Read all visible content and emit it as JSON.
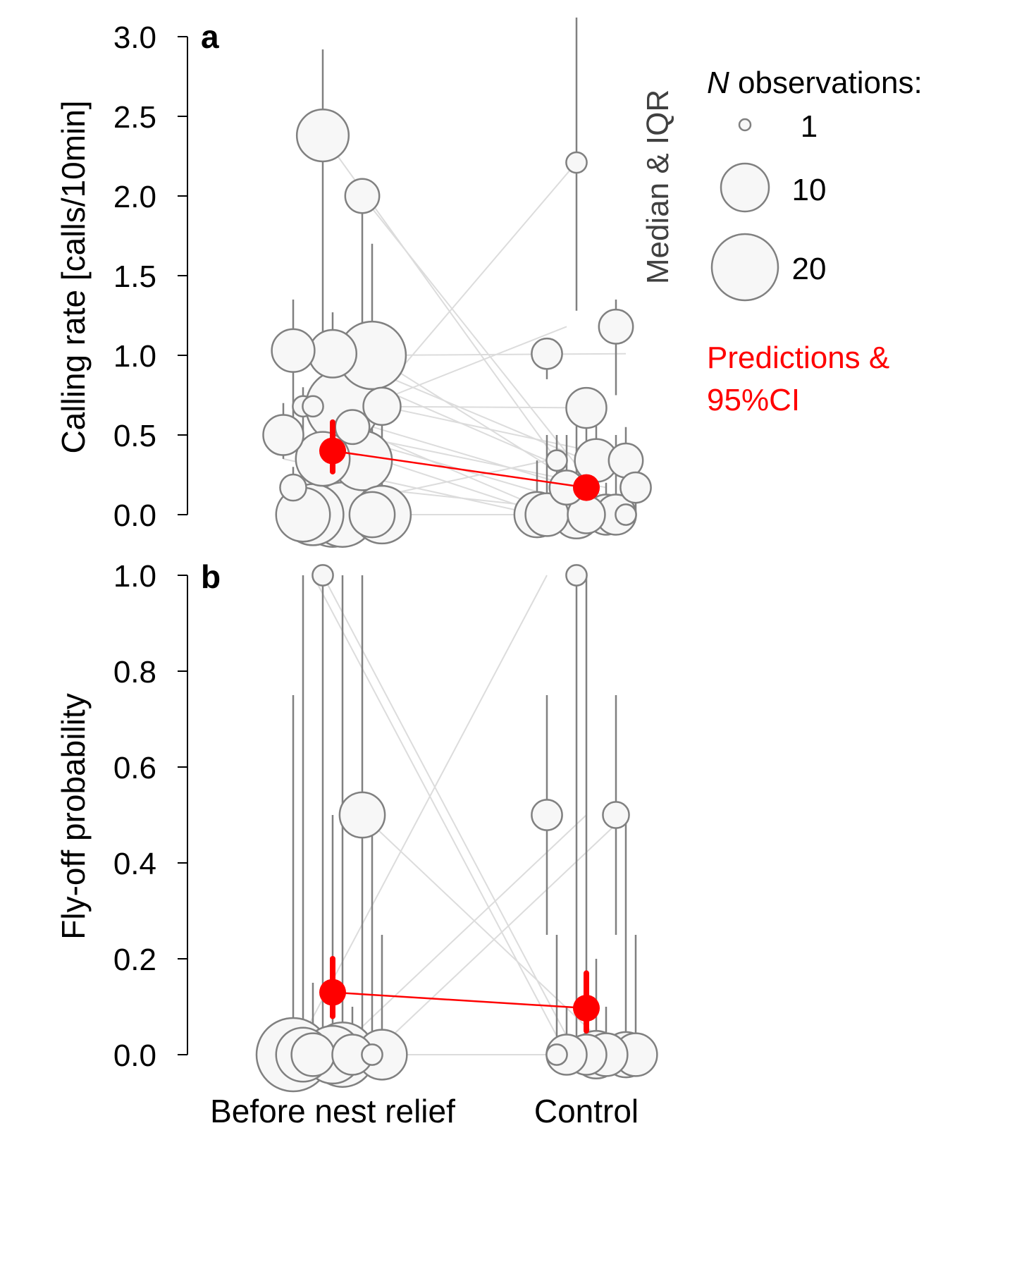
{
  "x_categories": [
    "Before nest relief",
    "Control"
  ],
  "legend": {
    "size_title_italic": "N",
    "size_title_rest": " observations:",
    "sizes": [
      {
        "label": "1",
        "n": 1
      },
      {
        "label": "10",
        "n": 10
      },
      {
        "label": "20",
        "n": 20
      }
    ],
    "median_label": "Median & IQR",
    "prediction_label_line1": "Predictions &",
    "prediction_label_line2": "95%CI",
    "prediction_color": "#ff0000",
    "observation_color": "#808080",
    "pairing_line_color": "#dcdcdc"
  },
  "chart_data": [
    {
      "type": "scatter",
      "panel_label": "a",
      "ylabel": "Calling rate [calls/10min]",
      "ylim": [
        0,
        3.0
      ],
      "yticks": [
        "0.0",
        "0.5",
        "1.0",
        "1.5",
        "2.0",
        "2.5",
        "3.0"
      ],
      "categories": [
        "Before nest relief",
        "Control"
      ],
      "observations": [
        {
          "x": "Before nest relief",
          "median": 2.38,
          "q1": 0.35,
          "q3": 2.92,
          "n": 11
        },
        {
          "x": "Before nest relief",
          "median": 2.0,
          "q1": 0.8,
          "q3": 2.1,
          "n": 4
        },
        {
          "x": "Before nest relief",
          "median": 1.03,
          "q1": 0.55,
          "q3": 1.35,
          "n": 7
        },
        {
          "x": "Before nest relief",
          "median": 1.01,
          "q1": 0.5,
          "q3": 1.27,
          "n": 9
        },
        {
          "x": "Before nest relief",
          "median": 1.0,
          "q1": 0.3,
          "q3": 1.7,
          "n": 20
        },
        {
          "x": "Before nest relief",
          "median": 0.68,
          "q1": 0.5,
          "q3": 0.8,
          "n": 1
        },
        {
          "x": "Before nest relief",
          "median": 0.68,
          "q1": 0.2,
          "q3": 1.0,
          "n": 24
        },
        {
          "x": "Before nest relief",
          "median": 0.68,
          "q1": 0.3,
          "q3": 0.85,
          "n": 5
        },
        {
          "x": "Before nest relief",
          "median": 0.68,
          "q1": 0.55,
          "q3": 0.8,
          "n": 1
        },
        {
          "x": "Before nest relief",
          "median": 0.55,
          "q1": 0.35,
          "q3": 0.75,
          "n": 4
        },
        {
          "x": "Before nest relief",
          "median": 0.5,
          "q1": 0.35,
          "q3": 0.7,
          "n": 6
        },
        {
          "x": "Before nest relief",
          "median": 0.35,
          "q1": 0.1,
          "q3": 0.55,
          "n": 12
        },
        {
          "x": "Before nest relief",
          "median": 0.34,
          "q1": 0.0,
          "q3": 0.6,
          "n": 15
        },
        {
          "x": "Before nest relief",
          "median": 0.17,
          "q1": 0.0,
          "q3": 0.3,
          "n": 2
        },
        {
          "x": "Before nest relief",
          "median": 0.0,
          "q1": 0.0,
          "q3": 0.25,
          "n": 18
        },
        {
          "x": "Before nest relief",
          "median": 0.0,
          "q1": 0.0,
          "q3": 0.1,
          "n": 8
        },
        {
          "x": "Before nest relief",
          "median": 0.0,
          "q1": 0.0,
          "q3": 0.15,
          "n": 12
        },
        {
          "x": "Before nest relief",
          "median": 0.0,
          "q1": 0.0,
          "q3": 0.3,
          "n": 18
        },
        {
          "x": "Before nest relief",
          "median": 0.0,
          "q1": 0.0,
          "q3": 0.2,
          "n": 14
        },
        {
          "x": "Before nest relief",
          "median": 0.0,
          "q1": 0.0,
          "q3": 0.15,
          "n": 16
        },
        {
          "x": "Control",
          "median": 2.21,
          "q1": 1.28,
          "q3": 3.12,
          "n": 1
        },
        {
          "x": "Control",
          "median": 1.18,
          "q1": 0.75,
          "q3": 1.35,
          "n": 4
        },
        {
          "x": "Control",
          "median": 1.01,
          "q1": 0.85,
          "q3": 1.1,
          "n": 3
        },
        {
          "x": "Control",
          "median": 0.67,
          "q1": 0.3,
          "q3": 0.7,
          "n": 6
        },
        {
          "x": "Control",
          "median": 0.34,
          "q1": 0.0,
          "q3": 0.55,
          "n": 4
        },
        {
          "x": "Control",
          "median": 0.34,
          "q1": 0.0,
          "q3": 0.5,
          "n": 1
        },
        {
          "x": "Control",
          "median": 0.34,
          "q1": 0.0,
          "q3": 0.67,
          "n": 7
        },
        {
          "x": "Control",
          "median": 0.17,
          "q1": 0.0,
          "q3": 0.34,
          "n": 3
        },
        {
          "x": "Control",
          "median": 0.17,
          "q1": 0.0,
          "q3": 0.5,
          "n": 4
        },
        {
          "x": "Control",
          "median": 0.0,
          "q1": 0.0,
          "q3": 0.2,
          "n": 6
        },
        {
          "x": "Control",
          "median": 0.0,
          "q1": 0.0,
          "q3": 0.34,
          "n": 8
        },
        {
          "x": "Control",
          "median": 0.0,
          "q1": 0.0,
          "q3": 0.6,
          "n": 9
        },
        {
          "x": "Control",
          "median": 0.0,
          "q1": 0.0,
          "q3": 0.5,
          "n": 6
        },
        {
          "x": "Control",
          "median": 0.0,
          "q1": 0.0,
          "q3": 0.5,
          "n": 7
        },
        {
          "x": "Control",
          "median": 0.0,
          "q1": 0.0,
          "q3": 0.3,
          "n": 5
        },
        {
          "x": "Control",
          "median": 0.0,
          "q1": 0.0,
          "q3": 0.1,
          "n": 1
        }
      ],
      "pairs": [
        [
          2.38,
          0.17
        ],
        [
          2.0,
          0.0
        ],
        [
          1.03,
          0.34
        ],
        [
          1.01,
          0.34
        ],
        [
          1.0,
          1.01
        ],
        [
          0.68,
          0.0
        ],
        [
          0.68,
          0.67
        ],
        [
          0.68,
          0.34
        ],
        [
          0.55,
          1.18
        ],
        [
          0.5,
          0.17
        ],
        [
          0.35,
          0.0
        ],
        [
          0.34,
          2.21
        ],
        [
          0.17,
          0.0
        ],
        [
          0.0,
          0.34
        ],
        [
          0.0,
          0.0
        ],
        [
          1.0,
          0.0
        ],
        [
          0.68,
          0.17
        ],
        [
          0.5,
          0.0
        ],
        [
          0.34,
          0.0
        ],
        [
          0.0,
          0.0
        ]
      ],
      "prediction": {
        "series": [
          {
            "x": "Before nest relief",
            "estimate": 0.4,
            "lower": 0.27,
            "upper": 0.58
          },
          {
            "x": "Control",
            "estimate": 0.17,
            "lower": 0.13,
            "upper": 0.23
          }
        ]
      }
    },
    {
      "type": "scatter",
      "panel_label": "b",
      "ylabel": "Fly-off probability",
      "ylim": [
        0,
        1.0
      ],
      "yticks": [
        "0.0",
        "0.2",
        "0.4",
        "0.6",
        "0.8",
        "1.0"
      ],
      "categories": [
        "Before nest relief",
        "Control"
      ],
      "observations": [
        {
          "x": "Before nest relief",
          "median": 1.0,
          "q1": 0.0,
          "q3": 1.0,
          "n": 1
        },
        {
          "x": "Before nest relief",
          "median": 0.5,
          "q1": 0.0,
          "q3": 1.0,
          "n": 8
        },
        {
          "x": "Before nest relief",
          "median": 0.0,
          "q1": 0.0,
          "q3": 0.75,
          "n": 24
        },
        {
          "x": "Before nest relief",
          "median": 0.0,
          "q1": 0.0,
          "q3": 0.5,
          "n": 14
        },
        {
          "x": "Before nest relief",
          "median": 0.0,
          "q1": 0.0,
          "q3": 0.5,
          "n": 1
        },
        {
          "x": "Before nest relief",
          "median": 0.0,
          "q1": 0.0,
          "q3": 1.0,
          "n": 12
        },
        {
          "x": "Before nest relief",
          "median": 0.0,
          "q1": 0.0,
          "q3": 1.0,
          "n": 18
        },
        {
          "x": "Before nest relief",
          "median": 0.0,
          "q1": 0.0,
          "q3": 0.25,
          "n": 10
        },
        {
          "x": "Before nest relief",
          "median": 0.0,
          "q1": 0.0,
          "q3": 0.15,
          "n": 7
        },
        {
          "x": "Before nest relief",
          "median": 0.0,
          "q1": 0.0,
          "q3": 0.1,
          "n": 6
        },
        {
          "x": "Control",
          "median": 1.0,
          "q1": 0.0,
          "q3": 1.0,
          "n": 1
        },
        {
          "x": "Control",
          "median": 0.5,
          "q1": 0.25,
          "q3": 0.75,
          "n": 2
        },
        {
          "x": "Control",
          "median": 0.5,
          "q1": 0.25,
          "q3": 0.75,
          "n": 3
        },
        {
          "x": "Control",
          "median": 0.0,
          "q1": 0.0,
          "q3": 1.0,
          "n": 6
        },
        {
          "x": "Control",
          "median": 0.0,
          "q1": 0.0,
          "q3": 0.5,
          "n": 8
        },
        {
          "x": "Control",
          "median": 0.0,
          "q1": 0.0,
          "q3": 0.25,
          "n": 1
        },
        {
          "x": "Control",
          "median": 0.0,
          "q1": 0.0,
          "q3": 0.2,
          "n": 9
        },
        {
          "x": "Control",
          "median": 0.0,
          "q1": 0.0,
          "q3": 0.25,
          "n": 7
        },
        {
          "x": "Control",
          "median": 0.0,
          "q1": 0.0,
          "q3": 0.1,
          "n": 6
        },
        {
          "x": "Control",
          "median": 0.0,
          "q1": 0.0,
          "q3": 0.1,
          "n": 7
        }
      ],
      "pairs": [
        [
          1.0,
          0.0
        ],
        [
          0.5,
          0.0
        ],
        [
          0.0,
          1.0
        ],
        [
          0.0,
          0.5
        ],
        [
          0.0,
          0.5
        ],
        [
          0.0,
          0.0
        ],
        [
          0.0,
          0.0
        ],
        [
          0.0,
          0.0
        ],
        [
          1.0,
          0.0
        ],
        [
          0.0,
          0.0
        ]
      ],
      "prediction": {
        "series": [
          {
            "x": "Before nest relief",
            "estimate": 0.13,
            "lower": 0.08,
            "upper": 0.2
          },
          {
            "x": "Control",
            "estimate": 0.097,
            "lower": 0.05,
            "upper": 0.17
          }
        ]
      }
    }
  ]
}
